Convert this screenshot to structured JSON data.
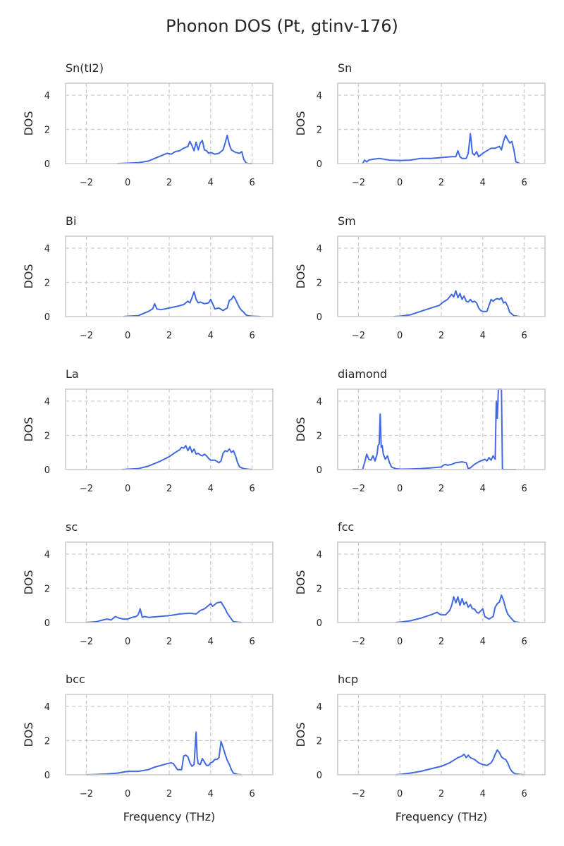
{
  "suptitle": "Phonon DOS (Pt, gtinv-176)",
  "colors": {
    "line": "#4169e1",
    "grid": "#cccccc",
    "frame": "#cccccc",
    "text": "#262626"
  },
  "chart_data": {
    "type": "line",
    "xlabel": "Frequency (THz)",
    "ylabel": "DOS",
    "xlim": [
      -3,
      7
    ],
    "ylim": [
      0,
      4.7
    ],
    "xticks": [
      "−2",
      "0",
      "2",
      "4",
      "6"
    ],
    "xtick_values": [
      -2,
      0,
      2,
      4,
      6
    ],
    "yticks": [
      "0",
      "2",
      "4"
    ],
    "ytick_values": [
      0,
      2,
      4
    ],
    "grid": true,
    "panels": [
      {
        "title": "Sn(tI2)",
        "series": [
          {
            "x": [
              -0.5,
              0,
              0.5,
              1,
              1.3,
              1.6,
              1.9,
              2.1,
              2.3,
              2.5,
              2.7,
              2.9,
              3.0,
              3.1,
              3.2,
              3.3,
              3.4,
              3.5,
              3.6,
              3.7,
              3.8,
              3.9,
              4.0,
              4.2,
              4.4,
              4.6,
              4.7,
              4.8,
              4.9,
              5.0,
              5.2,
              5.4,
              5.5,
              5.6,
              5.7,
              5.8,
              6.0
            ],
            "y": [
              0,
              0.02,
              0.05,
              0.15,
              0.3,
              0.45,
              0.6,
              0.55,
              0.7,
              0.75,
              0.9,
              1.0,
              1.3,
              1.05,
              0.75,
              1.25,
              0.8,
              1.2,
              1.35,
              0.8,
              0.75,
              0.6,
              0.65,
              0.55,
              0.6,
              0.8,
              1.2,
              1.65,
              1.1,
              0.8,
              0.65,
              0.6,
              0.7,
              0.25,
              0.05,
              0,
              0
            ]
          }
        ]
      },
      {
        "title": "Sn",
        "series": [
          {
            "x": [
              -1.8,
              -1.7,
              -1.6,
              -1.5,
              -1.3,
              -1.0,
              -0.5,
              0,
              0.5,
              1.0,
              1.5,
              2.0,
              2.5,
              2.7,
              2.8,
              2.9,
              3.0,
              3.2,
              3.3,
              3.4,
              3.5,
              3.6,
              3.7,
              3.8,
              4.0,
              4.2,
              4.4,
              4.6,
              4.8,
              4.9,
              5.0,
              5.1,
              5.2,
              5.3,
              5.4,
              5.5,
              5.6,
              5.8
            ],
            "y": [
              0,
              0.2,
              0.1,
              0.2,
              0.25,
              0.3,
              0.2,
              0.18,
              0.2,
              0.3,
              0.3,
              0.35,
              0.4,
              0.4,
              0.75,
              0.4,
              0.3,
              0.3,
              0.6,
              1.75,
              0.6,
              0.5,
              0.7,
              0.4,
              0.6,
              0.75,
              0.9,
              0.9,
              1.0,
              0.8,
              1.3,
              1.65,
              1.4,
              1.2,
              1.3,
              0.8,
              0.1,
              0
            ]
          }
        ]
      },
      {
        "title": "Bi",
        "series": [
          {
            "x": [
              -0.2,
              0,
              0.5,
              1.0,
              1.2,
              1.3,
              1.4,
              1.6,
              2.0,
              2.4,
              2.7,
              2.9,
              3.0,
              3.1,
              3.2,
              3.3,
              3.4,
              3.5,
              3.7,
              3.9,
              4.0,
              4.1,
              4.2,
              4.4,
              4.6,
              4.8,
              4.9,
              5.0,
              5.1,
              5.2,
              5.3,
              5.4,
              5.5,
              5.6,
              5.7,
              5.8,
              6.0,
              6.4
            ],
            "y": [
              0,
              0.02,
              0.05,
              0.3,
              0.45,
              0.75,
              0.45,
              0.4,
              0.5,
              0.6,
              0.7,
              0.9,
              0.8,
              1.1,
              1.45,
              1.0,
              0.8,
              0.85,
              0.75,
              0.8,
              1.0,
              0.75,
              0.45,
              0.5,
              0.35,
              0.5,
              0.95,
              1.0,
              1.2,
              1.0,
              0.75,
              0.5,
              0.35,
              0.25,
              0.1,
              0.05,
              0.02,
              0
            ]
          }
        ]
      },
      {
        "title": "Sm",
        "series": [
          {
            "x": [
              -0.3,
              0,
              0.5,
              1.0,
              1.5,
              1.9,
              2.1,
              2.3,
              2.5,
              2.6,
              2.7,
              2.8,
              2.9,
              3.0,
              3.1,
              3.2,
              3.3,
              3.4,
              3.5,
              3.6,
              3.7,
              3.8,
              3.9,
              4.0,
              4.2,
              4.4,
              4.5,
              4.6,
              4.7,
              4.8,
              4.9,
              5.0,
              5.1,
              5.2,
              5.3,
              5.5,
              5.8
            ],
            "y": [
              0,
              0.02,
              0.1,
              0.3,
              0.5,
              0.65,
              0.85,
              1.0,
              1.3,
              1.15,
              1.5,
              1.1,
              1.35,
              1.0,
              1.2,
              0.9,
              0.85,
              1.0,
              0.85,
              0.9,
              0.8,
              0.5,
              0.35,
              0.3,
              0.3,
              1.0,
              0.9,
              1.0,
              1.05,
              1.0,
              1.1,
              0.8,
              0.85,
              0.6,
              0.25,
              0.05,
              0
            ]
          }
        ]
      },
      {
        "title": "La",
        "series": [
          {
            "x": [
              -0.3,
              0,
              0.5,
              1.0,
              1.5,
              2.0,
              2.3,
              2.5,
              2.6,
              2.7,
              2.8,
              2.9,
              3.0,
              3.1,
              3.2,
              3.3,
              3.4,
              3.5,
              3.6,
              3.7,
              3.8,
              3.9,
              4.0,
              4.2,
              4.4,
              4.5,
              4.6,
              4.7,
              4.8,
              4.9,
              5.0,
              5.1,
              5.2,
              5.3,
              5.4,
              5.6,
              5.8,
              6.0
            ],
            "y": [
              0,
              0.02,
              0.05,
              0.2,
              0.45,
              0.75,
              1.0,
              1.15,
              1.3,
              1.25,
              1.4,
              1.1,
              1.35,
              1.0,
              1.2,
              0.9,
              0.95,
              0.85,
              0.8,
              0.9,
              0.8,
              0.65,
              0.55,
              0.55,
              0.4,
              0.5,
              0.95,
              1.1,
              1.05,
              1.2,
              1.0,
              1.1,
              0.8,
              0.4,
              0.15,
              0.05,
              0.02,
              0
            ]
          }
        ]
      },
      {
        "title": "diamond",
        "series": [
          {
            "x": [
              -2.3,
              -1.8,
              -1.7,
              -1.6,
              -1.5,
              -1.4,
              -1.3,
              -1.2,
              -1.1,
              -1.05,
              -1.0,
              -0.95,
              -0.9,
              -0.85,
              -0.8,
              -0.7,
              -0.6,
              -0.5,
              -0.4,
              -0.2,
              0,
              0.5,
              1.0,
              1.5,
              2.0,
              2.1,
              2.2,
              2.3,
              2.5,
              2.7,
              3.0,
              3.2,
              3.3,
              3.4,
              3.5,
              3.6,
              3.8,
              4.0,
              4.1,
              4.2,
              4.3,
              4.4,
              4.5,
              4.6,
              4.65,
              4.7,
              4.75,
              4.8,
              4.85,
              4.9,
              4.95,
              5.0,
              5.3,
              5.6
            ],
            "y": [
              0,
              0,
              0.4,
              0.9,
              0.6,
              0.55,
              0.8,
              0.5,
              0.9,
              1.4,
              1.5,
              3.25,
              1.3,
              1.4,
              0.9,
              0.6,
              0.8,
              0.4,
              0.15,
              0.05,
              0.02,
              0.03,
              0.05,
              0.1,
              0.15,
              0.25,
              0.3,
              0.25,
              0.3,
              0.4,
              0.45,
              0.4,
              0.05,
              0.1,
              0.2,
              0.3,
              0.45,
              0.55,
              0.6,
              0.5,
              0.7,
              0.55,
              0.8,
              0.6,
              4.0,
              3.0,
              4.7,
              4.7,
              4.7,
              4.7,
              0,
              0,
              0,
              0
            ]
          }
        ]
      },
      {
        "title": "sc",
        "series": [
          {
            "x": [
              -2.0,
              -1.5,
              -1.2,
              -1.0,
              -0.8,
              -0.6,
              -0.4,
              -0.2,
              0,
              0.2,
              0.4,
              0.5,
              0.6,
              0.7,
              0.8,
              1.0,
              1.5,
              2.0,
              2.5,
              3.0,
              3.3,
              3.5,
              3.7,
              3.9,
              4.0,
              4.1,
              4.3,
              4.5,
              4.6,
              4.7,
              4.8,
              5.0,
              5.1,
              5.3,
              5.5
            ],
            "y": [
              0,
              0.05,
              0.15,
              0.2,
              0.15,
              0.35,
              0.25,
              0.2,
              0.2,
              0.3,
              0.35,
              0.45,
              0.8,
              0.3,
              0.35,
              0.3,
              0.35,
              0.4,
              0.5,
              0.55,
              0.5,
              0.7,
              0.8,
              1.0,
              1.1,
              0.95,
              1.15,
              1.2,
              1.0,
              0.8,
              0.55,
              0.2,
              0.05,
              0.02,
              0
            ]
          }
        ]
      },
      {
        "title": "fcc",
        "series": [
          {
            "x": [
              -0.2,
              0,
              0.5,
              1.0,
              1.5,
              1.8,
              1.9,
              2.0,
              2.2,
              2.4,
              2.5,
              2.6,
              2.7,
              2.8,
              2.9,
              3.0,
              3.1,
              3.2,
              3.3,
              3.4,
              3.5,
              3.6,
              3.7,
              3.8,
              4.0,
              4.1,
              4.3,
              4.5,
              4.6,
              4.7,
              4.8,
              4.9,
              5.0,
              5.1,
              5.2,
              5.4,
              5.5,
              5.6,
              5.8
            ],
            "y": [
              0,
              0.02,
              0.1,
              0.25,
              0.45,
              0.6,
              0.5,
              0.45,
              0.45,
              0.7,
              1.0,
              1.5,
              1.15,
              1.5,
              1.0,
              1.4,
              1.05,
              1.2,
              0.9,
              1.05,
              0.8,
              0.8,
              0.6,
              0.55,
              0.8,
              0.35,
              0.2,
              0.35,
              0.9,
              1.1,
              1.2,
              1.6,
              1.3,
              0.85,
              0.5,
              0.2,
              0.08,
              0.03,
              0
            ]
          }
        ]
      },
      {
        "title": "bcc",
        "series": [
          {
            "x": [
              -2.0,
              -1.5,
              -1.0,
              -0.5,
              0,
              0.5,
              1.0,
              1.3,
              1.6,
              1.9,
              2.1,
              2.2,
              2.4,
              2.6,
              2.7,
              2.8,
              2.9,
              3.0,
              3.1,
              3.2,
              3.25,
              3.3,
              3.35,
              3.4,
              3.5,
              3.6,
              3.7,
              3.8,
              3.9,
              4.0,
              4.1,
              4.2,
              4.3,
              4.4,
              4.5,
              4.6,
              4.7,
              4.8,
              4.9,
              5.0,
              5.1,
              5.3,
              5.5
            ],
            "y": [
              0,
              0.02,
              0.05,
              0.1,
              0.2,
              0.2,
              0.3,
              0.45,
              0.55,
              0.65,
              0.7,
              0.65,
              0.3,
              0.3,
              1.1,
              1.15,
              1.05,
              0.7,
              0.5,
              0.6,
              1.6,
              2.5,
              1.0,
              0.65,
              0.6,
              0.95,
              0.75,
              0.55,
              0.55,
              0.7,
              0.75,
              0.9,
              0.9,
              1.0,
              1.95,
              1.6,
              1.2,
              0.85,
              0.6,
              0.3,
              0.1,
              0.02,
              0
            ]
          }
        ]
      },
      {
        "title": "hcp",
        "series": [
          {
            "x": [
              -0.2,
              0,
              0.5,
              1.0,
              1.5,
              2.0,
              2.4,
              2.8,
              3.0,
              3.1,
              3.2,
              3.3,
              3.4,
              3.5,
              3.6,
              3.8,
              4.0,
              4.2,
              4.4,
              4.5,
              4.6,
              4.7,
              4.8,
              4.9,
              5.0,
              5.1,
              5.2,
              5.3,
              5.4,
              5.5,
              5.6,
              5.8,
              6.0
            ],
            "y": [
              0,
              0.02,
              0.1,
              0.2,
              0.35,
              0.5,
              0.7,
              1.0,
              1.1,
              1.2,
              1.0,
              1.15,
              1.0,
              0.95,
              0.9,
              0.7,
              0.6,
              0.55,
              0.7,
              0.9,
              1.2,
              1.45,
              1.3,
              1.05,
              0.95,
              0.9,
              0.7,
              0.4,
              0.2,
              0.1,
              0.05,
              0.02,
              0
            ]
          }
        ]
      }
    ]
  }
}
